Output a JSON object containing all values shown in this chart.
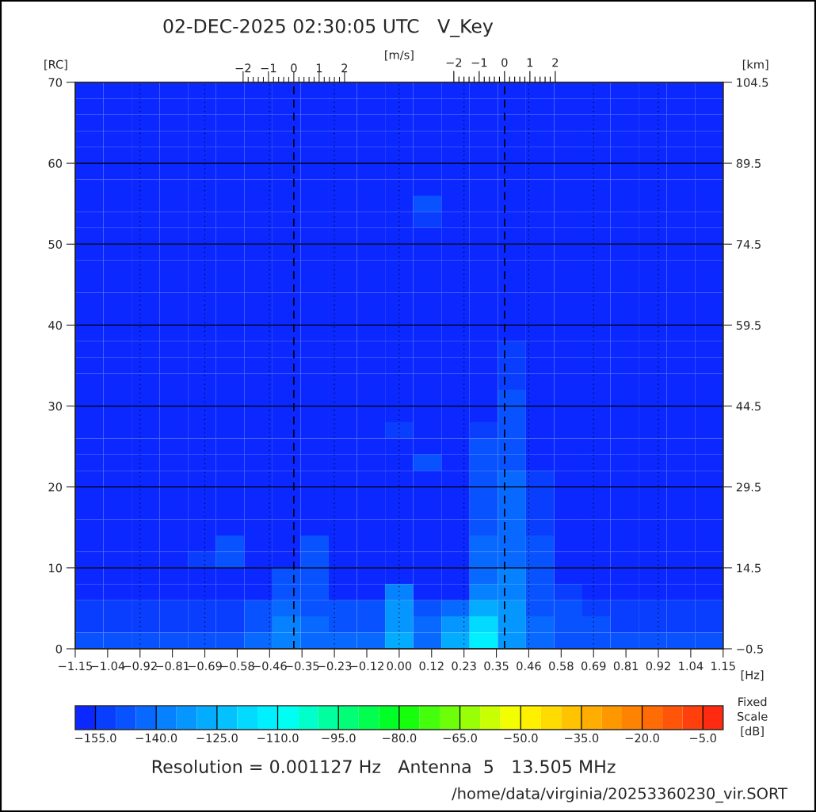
{
  "chart_data": {
    "type": "heatmap",
    "title": "02-DEC-2025 02:30:05 UTC   V_Key",
    "xlabel": "[Hz]",
    "ylabel": "[RC]",
    "y2label": "[km]",
    "x2label": "[m/s]",
    "clabel": "Fixed\nScale\n[dB]",
    "annotations": [
      "Resolution = 0.001127 Hz   Antenna  5   13.505 MHz",
      "/home/data/virginia/20253360230_vir.SORT",
      "−2",
      "−1",
      {
        "text": "0",
        "x": 0.374,
        "y": 70
      },
      "1",
      "2"
    ],
    "x": [
      -1.1,
      -1.0,
      -0.9,
      -0.8,
      -0.7,
      -0.6,
      -0.5,
      -0.4,
      -0.3,
      -0.2,
      -0.1,
      0.0,
      0.1,
      0.2,
      0.3,
      0.4,
      0.5,
      0.6,
      0.7,
      0.8,
      0.9,
      1.0,
      1.1
    ],
    "y": [
      69,
      67,
      65,
      63,
      61,
      59,
      57,
      55,
      53,
      51,
      49,
      47,
      45,
      43,
      41,
      39,
      37,
      35,
      33,
      31,
      29,
      27,
      25,
      23,
      21,
      19,
      17,
      15,
      13,
      11,
      9,
      7,
      5,
      3,
      1
    ],
    "cells": [
      [
        -157,
        -157,
        -157,
        -157,
        -157,
        -157,
        -157,
        -157,
        -157,
        -157,
        -157,
        -157,
        -157,
        -157,
        -157,
        -157,
        -157,
        -157,
        -157,
        -157,
        -157,
        -157,
        -157
      ],
      [
        -157,
        -157,
        -157,
        -157,
        -157,
        -157,
        -157,
        -157,
        -157,
        -157,
        -157,
        -157,
        -157,
        -157,
        -157,
        -157,
        -157,
        -157,
        -157,
        -157,
        -157,
        -157,
        -157
      ],
      [
        -157,
        -157,
        -157,
        -157,
        -157,
        -157,
        -157,
        -157,
        -157,
        -157,
        -157,
        -157,
        -157,
        -157,
        -157,
        -157,
        -157,
        -157,
        -157,
        -157,
        -157,
        -157,
        -157
      ],
      [
        -157,
        -157,
        -157,
        -157,
        -157,
        -157,
        -157,
        -157,
        -157,
        -157,
        -157,
        -157,
        -157,
        -157,
        -157,
        -157,
        -157,
        -157,
        -157,
        -157,
        -157,
        -157,
        -157
      ],
      [
        -157,
        -157,
        -157,
        -157,
        -157,
        -157,
        -157,
        -157,
        -157,
        -157,
        -157,
        -157,
        -157,
        -157,
        -157,
        -157,
        -157,
        -157,
        -157,
        -157,
        -157,
        -157,
        -157
      ],
      [
        -157,
        -157,
        -157,
        -157,
        -157,
        -157,
        -157,
        -157,
        -157,
        -157,
        -157,
        -157,
        -157,
        -157,
        -157,
        -157,
        -157,
        -157,
        -157,
        -157,
        -157,
        -157,
        -157
      ],
      [
        -157,
        -157,
        -157,
        -157,
        -157,
        -157,
        -157,
        -157,
        -157,
        -157,
        -157,
        -157,
        -157,
        -157,
        -157,
        -157,
        -157,
        -157,
        -157,
        -157,
        -157,
        -157,
        -157
      ],
      [
        -157,
        -157,
        -157,
        -157,
        -157,
        -157,
        -157,
        -157,
        -157,
        -157,
        -157,
        -157,
        -150,
        -157,
        -157,
        -157,
        -157,
        -157,
        -157,
        -157,
        -157,
        -157,
        -157
      ],
      [
        -157,
        -157,
        -157,
        -157,
        -157,
        -157,
        -157,
        -157,
        -157,
        -157,
        -157,
        -157,
        -152,
        -157,
        -157,
        -157,
        -157,
        -157,
        -157,
        -157,
        -157,
        -157,
        -157
      ],
      [
        -157,
        -157,
        -157,
        -157,
        -157,
        -157,
        -157,
        -157,
        -157,
        -157,
        -157,
        -157,
        -157,
        -157,
        -157,
        -157,
        -157,
        -157,
        -157,
        -157,
        -157,
        -157,
        -157
      ],
      [
        -157,
        -157,
        -157,
        -157,
        -157,
        -157,
        -157,
        -157,
        -157,
        -157,
        -157,
        -157,
        -157,
        -157,
        -157,
        -157,
        -157,
        -157,
        -157,
        -157,
        -157,
        -157,
        -157
      ],
      [
        -157,
        -157,
        -157,
        -157,
        -157,
        -157,
        -157,
        -157,
        -157,
        -157,
        -157,
        -157,
        -157,
        -157,
        -157,
        -157,
        -157,
        -157,
        -157,
        -157,
        -157,
        -157,
        -157
      ],
      [
        -157,
        -157,
        -157,
        -157,
        -157,
        -157,
        -157,
        -157,
        -157,
        -157,
        -157,
        -157,
        -157,
        -157,
        -157,
        -157,
        -157,
        -157,
        -157,
        -157,
        -157,
        -157,
        -157
      ],
      [
        -157,
        -157,
        -157,
        -157,
        -157,
        -157,
        -157,
        -157,
        -157,
        -157,
        -157,
        -157,
        -157,
        -157,
        -157,
        -157,
        -157,
        -157,
        -157,
        -157,
        -157,
        -157,
        -157
      ],
      [
        -157,
        -157,
        -157,
        -157,
        -157,
        -157,
        -157,
        -157,
        -157,
        -157,
        -157,
        -157,
        -157,
        -157,
        -157,
        -157,
        -157,
        -157,
        -157,
        -157,
        -157,
        -157,
        -157
      ],
      [
        -157,
        -157,
        -157,
        -157,
        -157,
        -157,
        -157,
        -157,
        -157,
        -157,
        -157,
        -157,
        -157,
        -157,
        -157,
        -157,
        -157,
        -157,
        -157,
        -157,
        -157,
        -157,
        -157
      ],
      [
        -157,
        -157,
        -157,
        -157,
        -157,
        -157,
        -157,
        -157,
        -157,
        -157,
        -157,
        -157,
        -157,
        -157,
        -157,
        -152,
        -157,
        -157,
        -157,
        -157,
        -157,
        -157,
        -157
      ],
      [
        -157,
        -157,
        -157,
        -157,
        -157,
        -157,
        -157,
        -157,
        -157,
        -157,
        -157,
        -157,
        -157,
        -157,
        -157,
        -152,
        -157,
        -157,
        -157,
        -157,
        -157,
        -157,
        -157
      ],
      [
        -157,
        -157,
        -157,
        -157,
        -157,
        -157,
        -157,
        -157,
        -157,
        -157,
        -157,
        -157,
        -157,
        -157,
        -157,
        -152,
        -157,
        -157,
        -157,
        -157,
        -157,
        -157,
        -157
      ],
      [
        -157,
        -157,
        -157,
        -157,
        -157,
        -157,
        -157,
        -157,
        -157,
        -157,
        -157,
        -157,
        -157,
        -157,
        -157,
        -150,
        -157,
        -157,
        -157,
        -157,
        -157,
        -157,
        -157
      ],
      [
        -157,
        -157,
        -157,
        -157,
        -157,
        -157,
        -157,
        -157,
        -157,
        -157,
        -157,
        -157,
        -157,
        -157,
        -157,
        -150,
        -157,
        -157,
        -157,
        -157,
        -157,
        -157,
        -157
      ],
      [
        -157,
        -157,
        -157,
        -157,
        -157,
        -157,
        -157,
        -157,
        -157,
        -157,
        -157,
        -152,
        -157,
        -157,
        -152,
        -150,
        -157,
        -157,
        -157,
        -157,
        -157,
        -157,
        -157
      ],
      [
        -157,
        -157,
        -157,
        -157,
        -157,
        -157,
        -157,
        -157,
        -157,
        -157,
        -157,
        -157,
        -157,
        -157,
        -150,
        -148,
        -157,
        -157,
        -157,
        -157,
        -157,
        -157,
        -157
      ],
      [
        -157,
        -157,
        -157,
        -157,
        -157,
        -157,
        -157,
        -157,
        -157,
        -157,
        -157,
        -157,
        -150,
        -157,
        -148,
        -147,
        -157,
        -157,
        -157,
        -157,
        -157,
        -157,
        -157
      ],
      [
        -157,
        -157,
        -157,
        -157,
        -157,
        -157,
        -157,
        -157,
        -157,
        -157,
        -157,
        -157,
        -157,
        -157,
        -147,
        -145,
        -152,
        -157,
        -157,
        -157,
        -157,
        -157,
        -157
      ],
      [
        -157,
        -157,
        -157,
        -157,
        -157,
        -157,
        -157,
        -157,
        -157,
        -157,
        -157,
        -157,
        -157,
        -157,
        -147,
        -145,
        -152,
        -157,
        -157,
        -157,
        -157,
        -157,
        -157
      ],
      [
        -157,
        -157,
        -157,
        -157,
        -157,
        -157,
        -157,
        -157,
        -157,
        -157,
        -157,
        -157,
        -157,
        -157,
        -147,
        -145,
        -152,
        -157,
        -157,
        -157,
        -157,
        -157,
        -157
      ],
      [
        -157,
        -157,
        -157,
        -157,
        -157,
        -157,
        -157,
        -157,
        -157,
        -157,
        -157,
        -157,
        -157,
        -157,
        -147,
        -145,
        -152,
        -157,
        -157,
        -157,
        -157,
        -157,
        -157
      ],
      [
        -157,
        -157,
        -157,
        -157,
        -157,
        -150,
        -157,
        -157,
        -150,
        -157,
        -157,
        -157,
        -157,
        -157,
        -145,
        -143,
        -150,
        -157,
        -157,
        -157,
        -157,
        -157,
        -157
      ],
      [
        -157,
        -157,
        -157,
        -157,
        -152,
        -150,
        -157,
        -157,
        -150,
        -157,
        -157,
        -157,
        -157,
        -157,
        -145,
        -143,
        -150,
        -157,
        -157,
        -157,
        -157,
        -157,
        -157
      ],
      [
        -157,
        -157,
        -157,
        -157,
        -157,
        -157,
        -157,
        -150,
        -150,
        -157,
        -157,
        -157,
        -157,
        -157,
        -143,
        -140,
        -150,
        -157,
        -157,
        -157,
        -157,
        -157,
        -157
      ],
      [
        -157,
        -157,
        -157,
        -157,
        -157,
        -157,
        -157,
        -148,
        -150,
        -157,
        -157,
        -140,
        -157,
        -157,
        -140,
        -138,
        -148,
        -152,
        -157,
        -157,
        -157,
        -157,
        -157
      ],
      [
        -152,
        -152,
        -152,
        -152,
        -152,
        -152,
        -150,
        -145,
        -147,
        -150,
        -150,
        -135,
        -148,
        -145,
        -130,
        -135,
        -147,
        -150,
        -152,
        -152,
        -152,
        -152,
        -152
      ],
      [
        -152,
        -152,
        -152,
        -152,
        -152,
        -152,
        -148,
        -140,
        -143,
        -148,
        -148,
        -132,
        -145,
        -135,
        -120,
        -135,
        -145,
        -148,
        -150,
        -152,
        -152,
        -152,
        -152
      ],
      [
        -150,
        -150,
        -150,
        -150,
        -150,
        -150,
        -145,
        -137,
        -143,
        -145,
        -145,
        -130,
        -142,
        -130,
        -112,
        -132,
        -143,
        -147,
        -150,
        -150,
        -150,
        -150,
        -150
      ]
    ],
    "xlim": [
      -1.15,
      1.15
    ],
    "ylim": [
      0,
      70
    ],
    "y2lim": [
      -0.5,
      104.5
    ],
    "x2lim": [
      -8.62,
      16.93
    ],
    "clim": [
      -160,
      0
    ],
    "xticks": [
      {
        "value": -1.15,
        "label": "−1.15"
      },
      {
        "value": -1.035,
        "label": "−1.04"
      },
      {
        "value": -0.92,
        "label": "−0.92"
      },
      {
        "value": -0.805,
        "label": "−0.81"
      },
      {
        "value": -0.69,
        "label": "−0.69"
      },
      {
        "value": -0.575,
        "label": "−0.58"
      },
      {
        "value": -0.46,
        "label": "−0.46"
      },
      {
        "value": -0.345,
        "label": "−0.35"
      },
      {
        "value": -0.23,
        "label": "−0.23"
      },
      {
        "value": -0.115,
        "label": "−0.12"
      },
      {
        "value": 0,
        "label": "0.00"
      },
      {
        "value": 0.115,
        "label": "0.12"
      },
      {
        "value": 0.23,
        "label": "0.23"
      },
      {
        "value": 0.345,
        "label": "0.35"
      },
      {
        "value": 0.46,
        "label": "0.46"
      },
      {
        "value": 0.575,
        "label": "0.58"
      },
      {
        "value": 0.69,
        "label": "0.69"
      },
      {
        "value": 0.805,
        "label": "0.81"
      },
      {
        "value": 0.92,
        "label": "0.92"
      },
      {
        "value": 1.035,
        "label": "1.04"
      },
      {
        "value": 1.15,
        "label": "1.15"
      }
    ],
    "yticks": [
      0,
      10,
      20,
      30,
      40,
      50,
      60,
      70
    ],
    "y2ticks": [
      {
        "value": -0.5,
        "label": "−0.5"
      },
      14.5,
      29.5,
      44.5,
      59.5,
      74.5,
      89.5,
      104.5
    ],
    "x2ticks": [
      {
        "value": -2,
        "label": "−2"
      },
      {
        "value": -1.8,
        "label": null
      },
      {
        "value": -1.6,
        "label": null
      },
      {
        "value": -1.4,
        "label": null
      },
      {
        "value": -1.2,
        "label": null
      },
      {
        "value": -1,
        "label": "−1"
      },
      {
        "value": -0.8,
        "label": null
      },
      {
        "value": -0.6,
        "label": null
      },
      {
        "value": -0.4,
        "label": null
      },
      {
        "value": -0.2,
        "label": null
      },
      0,
      {
        "value": 0.2,
        "label": null
      },
      {
        "value": 0.4,
        "label": null
      },
      {
        "value": 0.6,
        "label": null
      },
      {
        "value": 0.8,
        "label": null
      },
      1,
      {
        "value": 1.2,
        "label": null
      },
      {
        "value": 1.4,
        "label": null
      },
      {
        "value": 1.6,
        "label": null
      },
      {
        "value": 1.8,
        "label": null
      },
      2
    ],
    "cticks": [
      {
        "value": -155,
        "label": "−155.0"
      },
      {
        "value": -140,
        "label": "−140.0"
      },
      {
        "value": -125,
        "label": "−125.0"
      },
      {
        "value": -110,
        "label": "−110.0"
      },
      {
        "value": -95,
        "label": "−95.0"
      },
      {
        "value": -80,
        "label": "−80.0"
      },
      {
        "value": -65,
        "label": "−65.0"
      },
      {
        "value": -50,
        "label": "−50.0"
      },
      {
        "value": -35,
        "label": "−35.0"
      },
      {
        "value": -20,
        "label": "−20.0"
      },
      {
        "value": -5,
        "label": "−5.0"
      }
    ],
    "ref_lines": [
      {
        "axis": "x",
        "value": -0.374,
        "color": "#000000",
        "line_style": "dashed"
      },
      {
        "axis": "x",
        "value": 0.374,
        "color": "#000000",
        "line_style": "dashed"
      }
    ],
    "grid": true
  }
}
